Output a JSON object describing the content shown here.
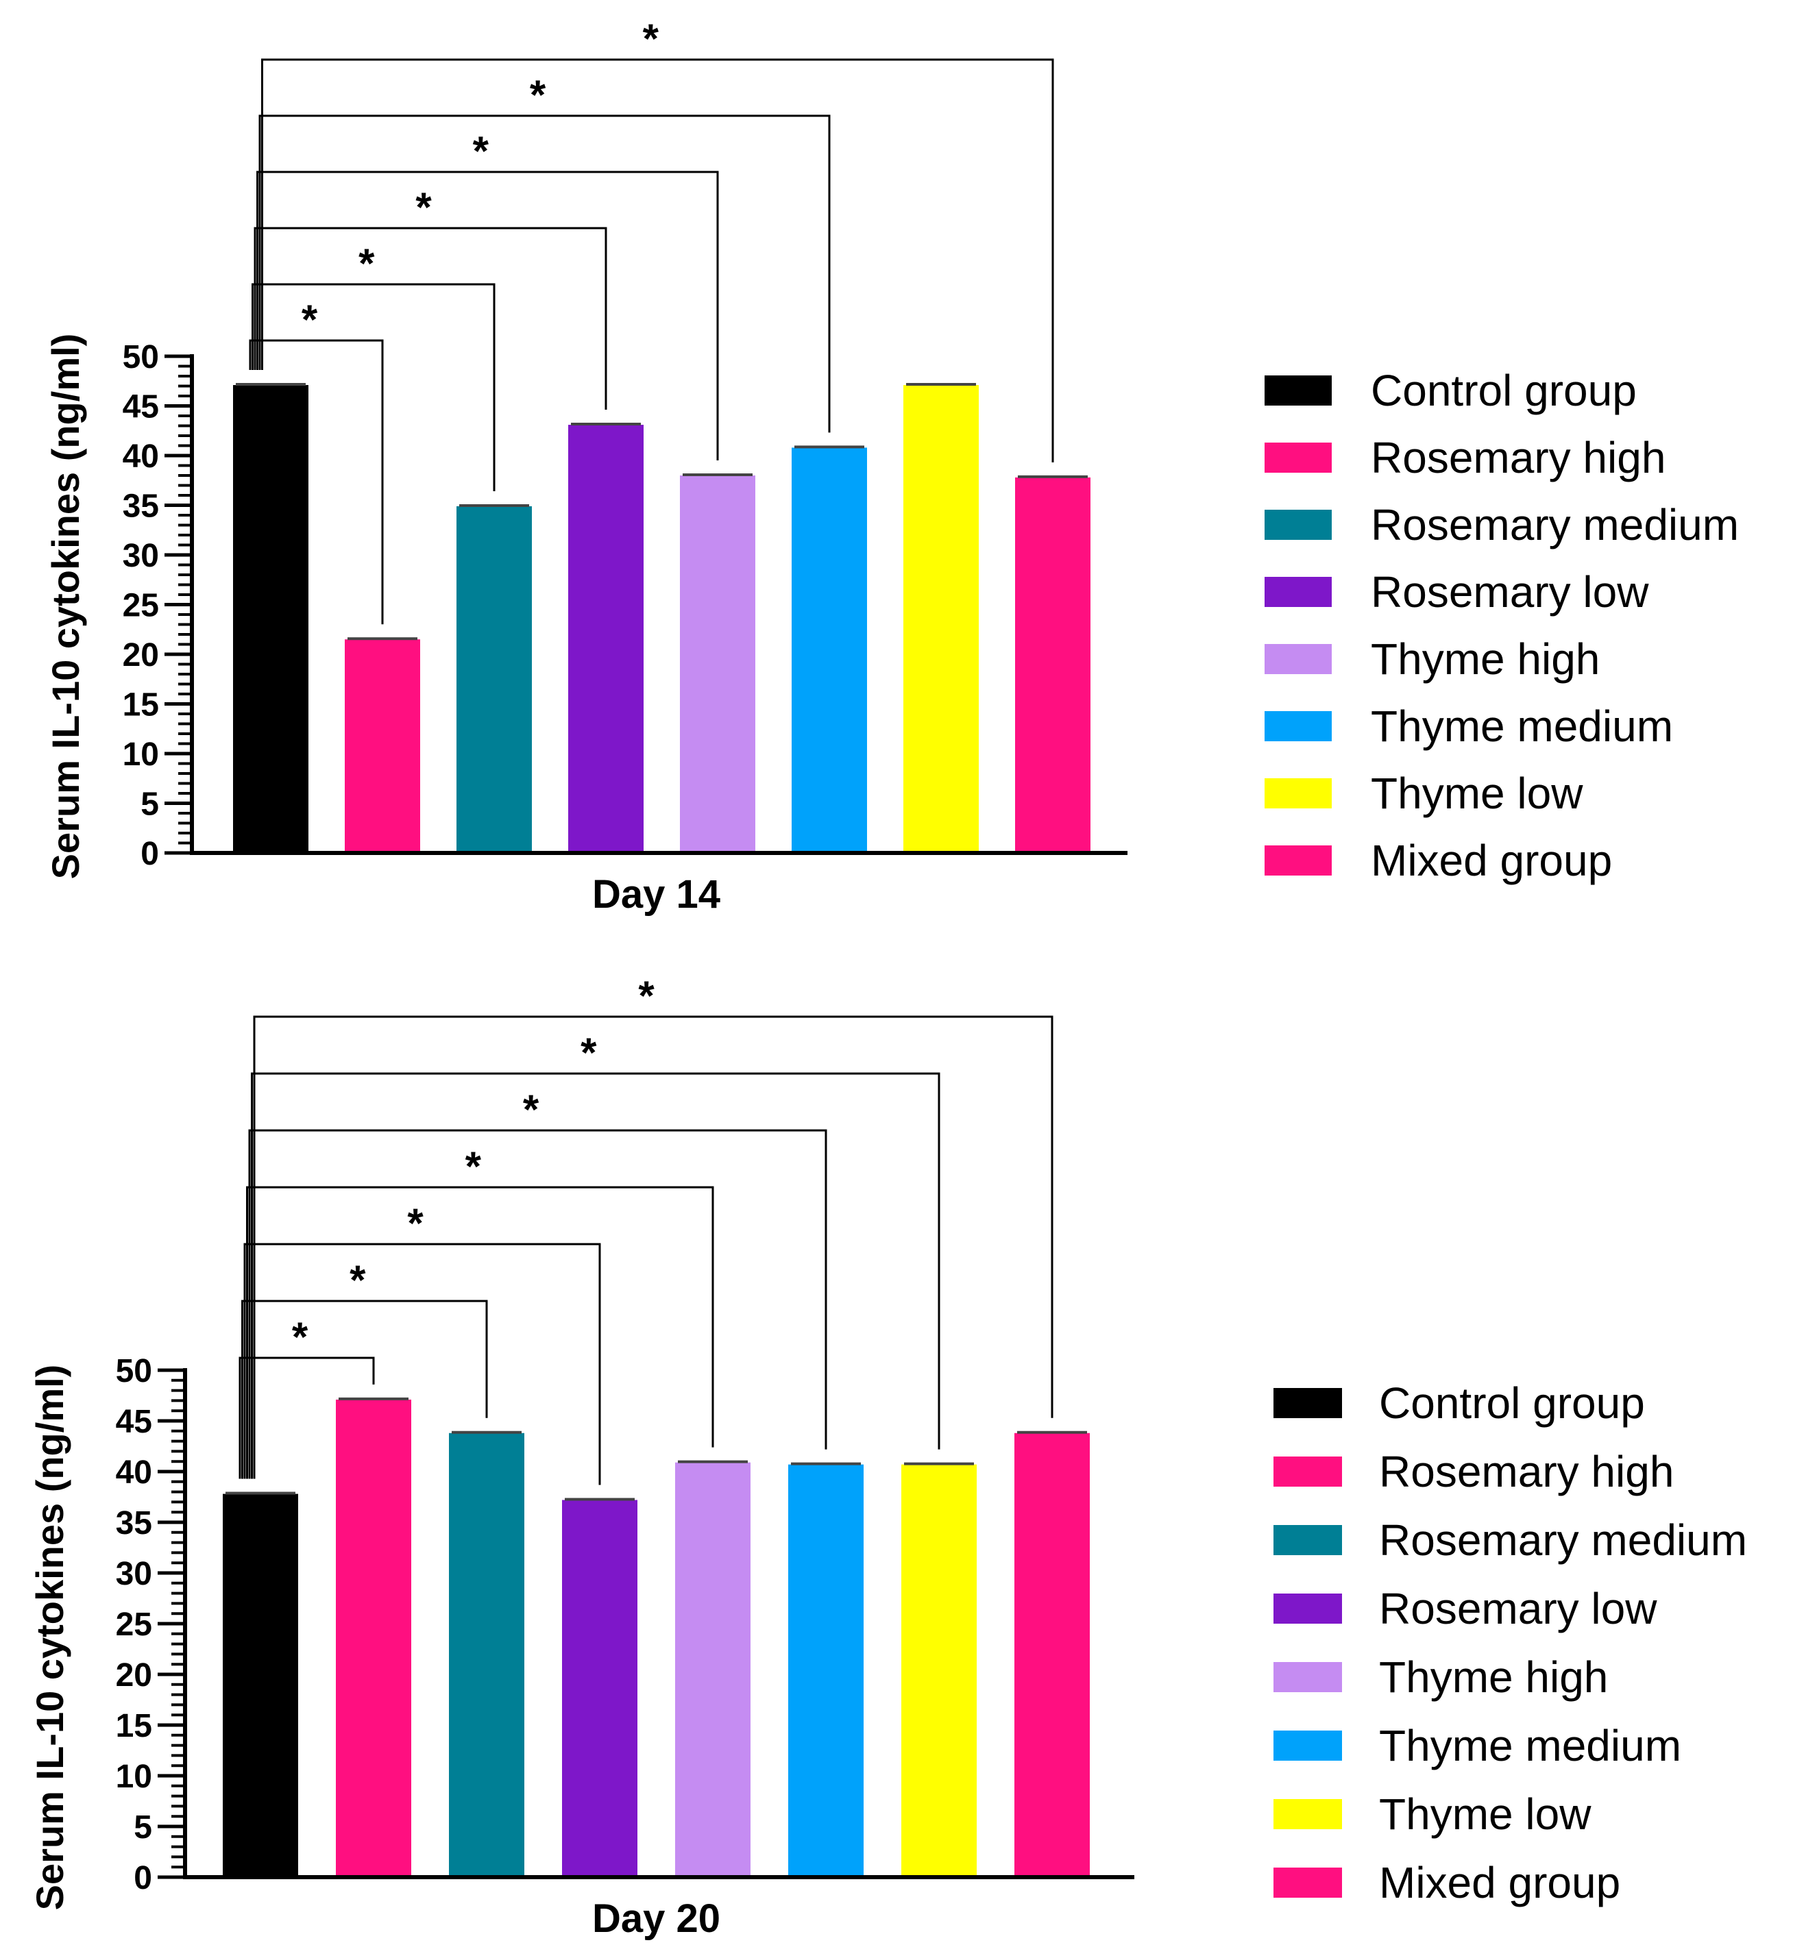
{
  "chart_data": [
    {
      "type": "bar",
      "title": "",
      "xlabel": "Day 14",
      "ylabel": "Serum IL-10 cytokines (ng/ml)",
      "ylim": [
        0,
        50
      ],
      "yticks": [
        0,
        5,
        10,
        15,
        20,
        25,
        30,
        35,
        40,
        45,
        50
      ],
      "grid": false,
      "legend_position": "right",
      "categories": [
        "Control group",
        "Rosemary high",
        "Rosemary medium",
        "Rosemary low",
        "Thyme high",
        "Thyme medium",
        "Thyme low",
        "Mixed group"
      ],
      "values": [
        47.1,
        21.5,
        34.9,
        43.1,
        38.0,
        40.8,
        47.1,
        37.8
      ],
      "colors": [
        "#000000",
        "#ff0f80",
        "#007f95",
        "#7e17c9",
        "#c58cf2",
        "#00a2fb",
        "#ffff00",
        "#ff0f80"
      ],
      "significance": [
        {
          "from": "Control group",
          "to": "Rosemary high",
          "label": "*"
        },
        {
          "from": "Control group",
          "to": "Rosemary medium",
          "label": "*"
        },
        {
          "from": "Control group",
          "to": "Rosemary low",
          "label": "*"
        },
        {
          "from": "Control group",
          "to": "Thyme high",
          "label": "*"
        },
        {
          "from": "Control group",
          "to": "Thyme medium",
          "label": "*"
        },
        {
          "from": "Control group",
          "to": "Mixed group",
          "label": "*"
        }
      ]
    },
    {
      "type": "bar",
      "title": "",
      "xlabel": "Day 20",
      "ylabel": "Serum IL-10 cytokines (ng/ml)",
      "ylim": [
        0,
        50
      ],
      "yticks": [
        0,
        5,
        10,
        15,
        20,
        25,
        30,
        35,
        40,
        45,
        50
      ],
      "grid": false,
      "legend_position": "right",
      "categories": [
        "Control group",
        "Rosemary high",
        "Rosemary medium",
        "Rosemary low",
        "Thyme high",
        "Thyme medium",
        "Thyme low",
        "Mixed group"
      ],
      "values": [
        37.8,
        47.1,
        43.8,
        37.2,
        40.9,
        40.7,
        40.7,
        43.8
      ],
      "colors": [
        "#000000",
        "#ff0f80",
        "#007f95",
        "#7e17c9",
        "#c58cf2",
        "#00a2fb",
        "#ffff00",
        "#ff0f80"
      ],
      "significance": [
        {
          "from": "Control group",
          "to": "Rosemary high",
          "label": "*"
        },
        {
          "from": "Control group",
          "to": "Rosemary medium",
          "label": "*"
        },
        {
          "from": "Control group",
          "to": "Rosemary low",
          "label": "*"
        },
        {
          "from": "Control group",
          "to": "Thyme high",
          "label": "*"
        },
        {
          "from": "Control group",
          "to": "Thyme medium",
          "label": "*"
        },
        {
          "from": "Control group",
          "to": "Thyme low",
          "label": "*"
        },
        {
          "from": "Control group",
          "to": "Mixed group",
          "label": "*"
        }
      ]
    }
  ]
}
